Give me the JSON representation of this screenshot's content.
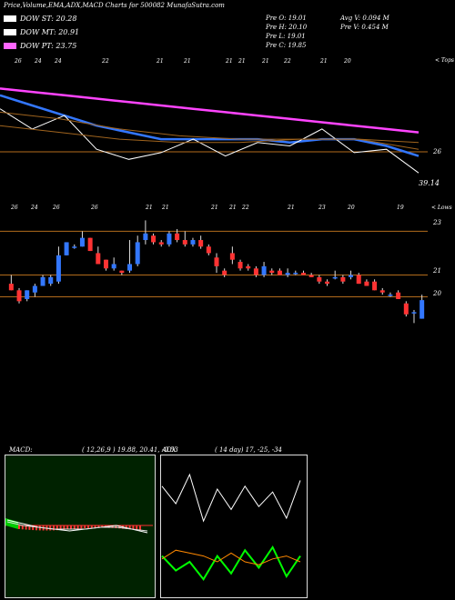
{
  "header": {
    "title": "Price,Volume,EMA,ADX,MACD Charts for 500082",
    "site": "MunafaSutra.com"
  },
  "legend": [
    {
      "label": "DOW ST: 20.28",
      "color": "#ffffff"
    },
    {
      "label": "DOW MT: 20.91",
      "color": "#ffffff"
    },
    {
      "label": "DOW PT: 23.75",
      "color": "#ff66ff"
    }
  ],
  "ohlc": {
    "o": "Pre   O: 19.01",
    "h": "Pre   H: 20.10",
    "l": "Pre   L: 19.01",
    "c": "Pre   C: 19.85",
    "avg_v": "Avg V: 0.094   M",
    "pre_v": "Pre   V: 0.454   M"
  },
  "upper_panel": {
    "top_label": "< Tops",
    "axis_label": "26",
    "value_label": "39.14",
    "top_ticks": [
      "26",
      "24",
      "24",
      "22",
      "21",
      "21",
      "21",
      "21",
      "21",
      "22",
      "21",
      "20"
    ],
    "bottom_ticks": [
      "26",
      "24",
      "26",
      "26",
      "21",
      "21",
      "21",
      "21",
      "22",
      "21",
      "23",
      "20",
      "19"
    ],
    "lows_label": "< Lows"
  },
  "candle_panel": {
    "axis_labels": [
      "23",
      "21",
      "20"
    ]
  },
  "macd": {
    "title": "MACD:",
    "params": "( 12,26,9 ) 19.88,  20.41,  -0.53"
  },
  "adx": {
    "title": "ADX",
    "params": "( 14  day) 17,  -25,  -34"
  },
  "chart_data": {
    "type": "candlestick",
    "candles": [
      {
        "o": 20.6,
        "h": 21.0,
        "l": 20.3,
        "c": 20.3
      },
      {
        "o": 20.3,
        "h": 20.4,
        "l": 19.7,
        "c": 19.8
      },
      {
        "o": 19.9,
        "h": 20.3,
        "l": 19.8,
        "c": 20.3
      },
      {
        "o": 20.2,
        "h": 20.6,
        "l": 20.0,
        "c": 20.5
      },
      {
        "o": 20.5,
        "h": 21.0,
        "l": 20.5,
        "c": 20.9
      },
      {
        "o": 20.6,
        "h": 21.0,
        "l": 20.5,
        "c": 20.9
      },
      {
        "o": 20.7,
        "h": 22.3,
        "l": 20.6,
        "c": 21.9
      },
      {
        "o": 21.9,
        "h": 22.5,
        "l": 21.9,
        "c": 22.5
      },
      {
        "o": 22.3,
        "h": 22.4,
        "l": 22.2,
        "c": 22.3
      },
      {
        "o": 22.3,
        "h": 23.0,
        "l": 22.3,
        "c": 22.7
      },
      {
        "o": 22.7,
        "h": 22.7,
        "l": 22.1,
        "c": 22.1
      },
      {
        "o": 22.0,
        "h": 22.3,
        "l": 21.5,
        "c": 21.5
      },
      {
        "o": 21.7,
        "h": 21.7,
        "l": 21.2,
        "c": 21.3
      },
      {
        "o": 21.3,
        "h": 21.8,
        "l": 21.2,
        "c": 21.5
      },
      {
        "o": 21.2,
        "h": 21.2,
        "l": 21.0,
        "c": 21.1
      },
      {
        "o": 21.2,
        "h": 22.6,
        "l": 21.1,
        "c": 21.5
      },
      {
        "o": 21.5,
        "h": 22.8,
        "l": 21.4,
        "c": 22.5
      },
      {
        "o": 22.6,
        "h": 23.5,
        "l": 22.4,
        "c": 22.9
      },
      {
        "o": 22.8,
        "h": 22.9,
        "l": 22.4,
        "c": 22.5
      },
      {
        "o": 22.5,
        "h": 22.6,
        "l": 22.3,
        "c": 22.4
      },
      {
        "o": 22.4,
        "h": 23.0,
        "l": 22.3,
        "c": 22.9
      },
      {
        "o": 22.9,
        "h": 23.1,
        "l": 22.5,
        "c": 22.6
      },
      {
        "o": 22.6,
        "h": 23.0,
        "l": 22.3,
        "c": 22.4
      },
      {
        "o": 22.4,
        "h": 22.7,
        "l": 22.3,
        "c": 22.6
      },
      {
        "o": 22.6,
        "h": 22.8,
        "l": 22.2,
        "c": 22.3
      },
      {
        "o": 22.3,
        "h": 22.4,
        "l": 21.9,
        "c": 22.0
      },
      {
        "o": 21.8,
        "h": 22.0,
        "l": 21.1,
        "c": 21.4
      },
      {
        "o": 21.2,
        "h": 21.3,
        "l": 20.9,
        "c": 21.0
      },
      {
        "o": 22.0,
        "h": 22.3,
        "l": 21.5,
        "c": 21.7
      },
      {
        "o": 21.6,
        "h": 21.7,
        "l": 21.2,
        "c": 21.3
      },
      {
        "o": 21.4,
        "h": 21.5,
        "l": 21.2,
        "c": 21.3
      },
      {
        "o": 21.3,
        "h": 21.4,
        "l": 20.9,
        "c": 21.0
      },
      {
        "o": 21.0,
        "h": 21.6,
        "l": 20.9,
        "c": 21.4
      },
      {
        "o": 21.2,
        "h": 21.3,
        "l": 21.0,
        "c": 21.1
      },
      {
        "o": 21.2,
        "h": 21.3,
        "l": 21.0,
        "c": 21.0
      },
      {
        "o": 21.0,
        "h": 21.3,
        "l": 20.9,
        "c": 21.1
      },
      {
        "o": 21.1,
        "h": 21.2,
        "l": 21.0,
        "c": 21.1
      },
      {
        "o": 21.1,
        "h": 21.2,
        "l": 21.0,
        "c": 21.0
      },
      {
        "o": 21.0,
        "h": 21.1,
        "l": 20.9,
        "c": 20.9
      },
      {
        "o": 20.9,
        "h": 21.0,
        "l": 20.6,
        "c": 20.7
      },
      {
        "o": 20.7,
        "h": 20.8,
        "l": 20.5,
        "c": 20.6
      },
      {
        "o": 20.9,
        "h": 21.2,
        "l": 20.8,
        "c": 20.9
      },
      {
        "o": 20.9,
        "h": 21.0,
        "l": 20.6,
        "c": 20.7
      },
      {
        "o": 20.9,
        "h": 21.2,
        "l": 20.8,
        "c": 21.0
      },
      {
        "o": 21.0,
        "h": 21.1,
        "l": 20.6,
        "c": 20.6
      },
      {
        "o": 20.7,
        "h": 20.8,
        "l": 20.5,
        "c": 20.5
      },
      {
        "o": 20.7,
        "h": 20.8,
        "l": 20.3,
        "c": 20.3
      },
      {
        "o": 20.3,
        "h": 20.4,
        "l": 20.1,
        "c": 20.2
      },
      {
        "o": 20.1,
        "h": 20.2,
        "l": 20.0,
        "c": 20.1
      },
      {
        "o": 20.2,
        "h": 20.3,
        "l": 19.9,
        "c": 19.9
      },
      {
        "o": 19.7,
        "h": 19.8,
        "l": 19.1,
        "c": 19.2
      },
      {
        "o": 19.3,
        "h": 19.4,
        "l": 18.8,
        "c": 19.3
      },
      {
        "o": 19.0,
        "h": 20.1,
        "l": 19.0,
        "c": 19.85
      }
    ],
    "upper_lines": [
      {
        "color": "#ff44ff",
        "values": [
          27.4,
          27.3,
          27.2,
          27.1,
          27.0,
          26.9,
          26.8,
          26.7,
          26.6,
          26.5,
          26.4,
          26.3,
          26.2,
          26.1
        ]
      },
      {
        "color": "#3377ff",
        "values": [
          27.2,
          26.9,
          26.6,
          26.3,
          26.1,
          25.9,
          25.9,
          25.9,
          25.9,
          25.8,
          25.9,
          25.9,
          25.7,
          25.4
        ]
      },
      {
        "color": "#ffffff",
        "values": [
          26.8,
          26.2,
          26.6,
          25.6,
          25.3,
          25.5,
          25.9,
          25.4,
          25.8,
          25.7,
          26.2,
          25.5,
          25.6,
          24.9
        ]
      }
    ],
    "macd_lines": [
      {
        "color": "#ffffff",
        "values": [
          0.3,
          0.1,
          -0.1,
          -0.2,
          -0.3,
          -0.2,
          -0.1,
          0.0,
          -0.2,
          -0.4
        ]
      },
      {
        "color": "#dddddd",
        "values": [
          0.2,
          0.0,
          -0.1,
          -0.2,
          -0.2,
          -0.2,
          -0.1,
          -0.1,
          -0.2,
          -0.3
        ]
      }
    ],
    "adx_lines": [
      {
        "color": "#ffffff",
        "values": [
          36,
          30,
          40,
          24,
          35,
          28,
          36,
          29,
          34,
          25,
          38
        ]
      },
      {
        "color": "#00ff00",
        "values": [
          12,
          7,
          10,
          4,
          12,
          6,
          14,
          8,
          15,
          5,
          12
        ]
      },
      {
        "color": "#ff8800",
        "values": [
          11,
          14,
          13,
          12,
          10,
          13,
          10,
          9,
          11,
          12,
          10
        ]
      }
    ]
  }
}
